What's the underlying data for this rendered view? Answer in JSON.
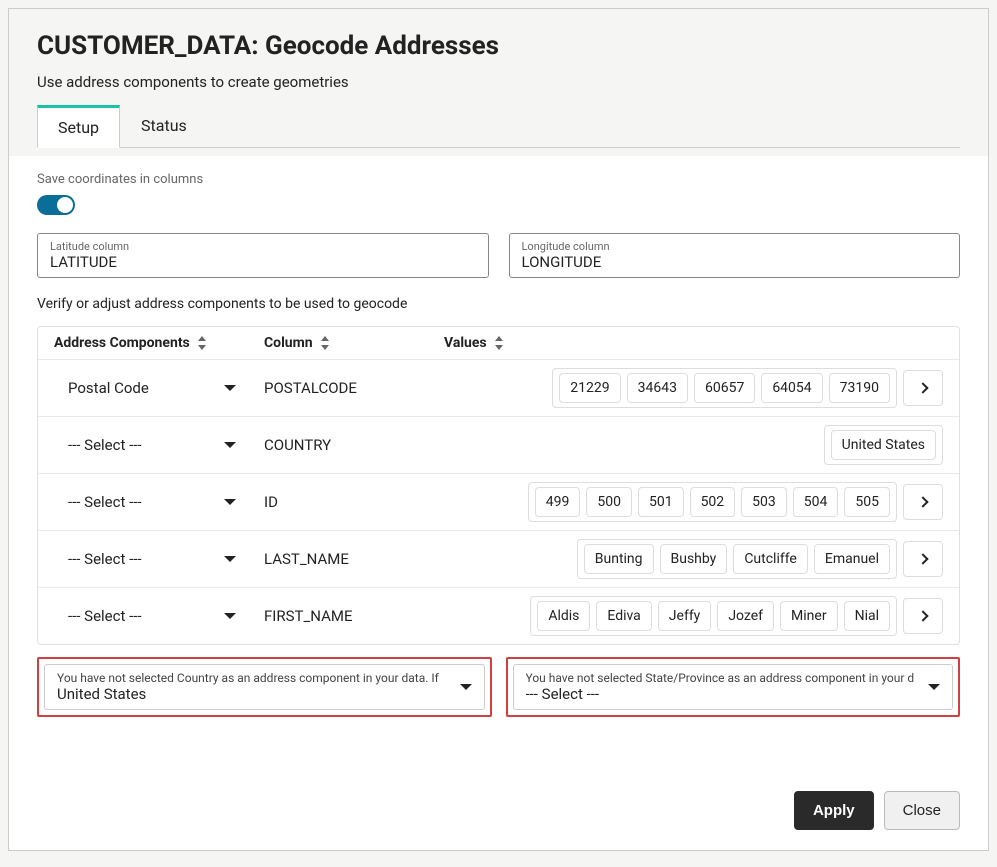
{
  "title": "CUSTOMER_DATA: Geocode Addresses",
  "subtitle": "Use address components to create geometries",
  "tabs": {
    "setup": "Setup",
    "status": "Status"
  },
  "saveCoords": {
    "label": "Save coordinates in columns",
    "on": true
  },
  "latCol": {
    "label": "Latitude column",
    "value": "LATITUDE"
  },
  "lonCol": {
    "label": "Longitude column",
    "value": "LONGITUDE"
  },
  "verifyText": "Verify or adjust address components to be used to geocode",
  "headers": {
    "ac": "Address Components",
    "col": "Column",
    "val": "Values"
  },
  "rows": [
    {
      "component": "Postal Code",
      "column": "POSTALCODE",
      "values": [
        "21229",
        "34643",
        "60657",
        "64054",
        "73190"
      ],
      "more": true
    },
    {
      "component": "--- Select ---",
      "column": "COUNTRY",
      "values": [
        "United States"
      ],
      "more": false
    },
    {
      "component": "--- Select ---",
      "column": "ID",
      "values": [
        "499",
        "500",
        "501",
        "502",
        "503",
        "504",
        "505"
      ],
      "more": true
    },
    {
      "component": "--- Select ---",
      "column": "LAST_NAME",
      "values": [
        "Bunting",
        "Bushby",
        "Cutcliffe",
        "Emanuel"
      ],
      "more": true
    },
    {
      "component": "--- Select ---",
      "column": "FIRST_NAME",
      "values": [
        "Aldis",
        "Ediva",
        "Jeffy",
        "Jozef",
        "Miner",
        "Nial"
      ],
      "more": true
    }
  ],
  "countryFallback": {
    "msg": "You have not selected Country as an address component in your data. If",
    "value": "United States"
  },
  "stateFallback": {
    "msg": "You have not selected State/Province as an address component in your d",
    "value": "--- Select ---"
  },
  "buttons": {
    "apply": "Apply",
    "close": "Close"
  },
  "colors": {
    "accent": "#1bc2a6",
    "toggle": "#0b6e99",
    "highlight": "#d14040",
    "applyBg": "#2a2a2a"
  }
}
